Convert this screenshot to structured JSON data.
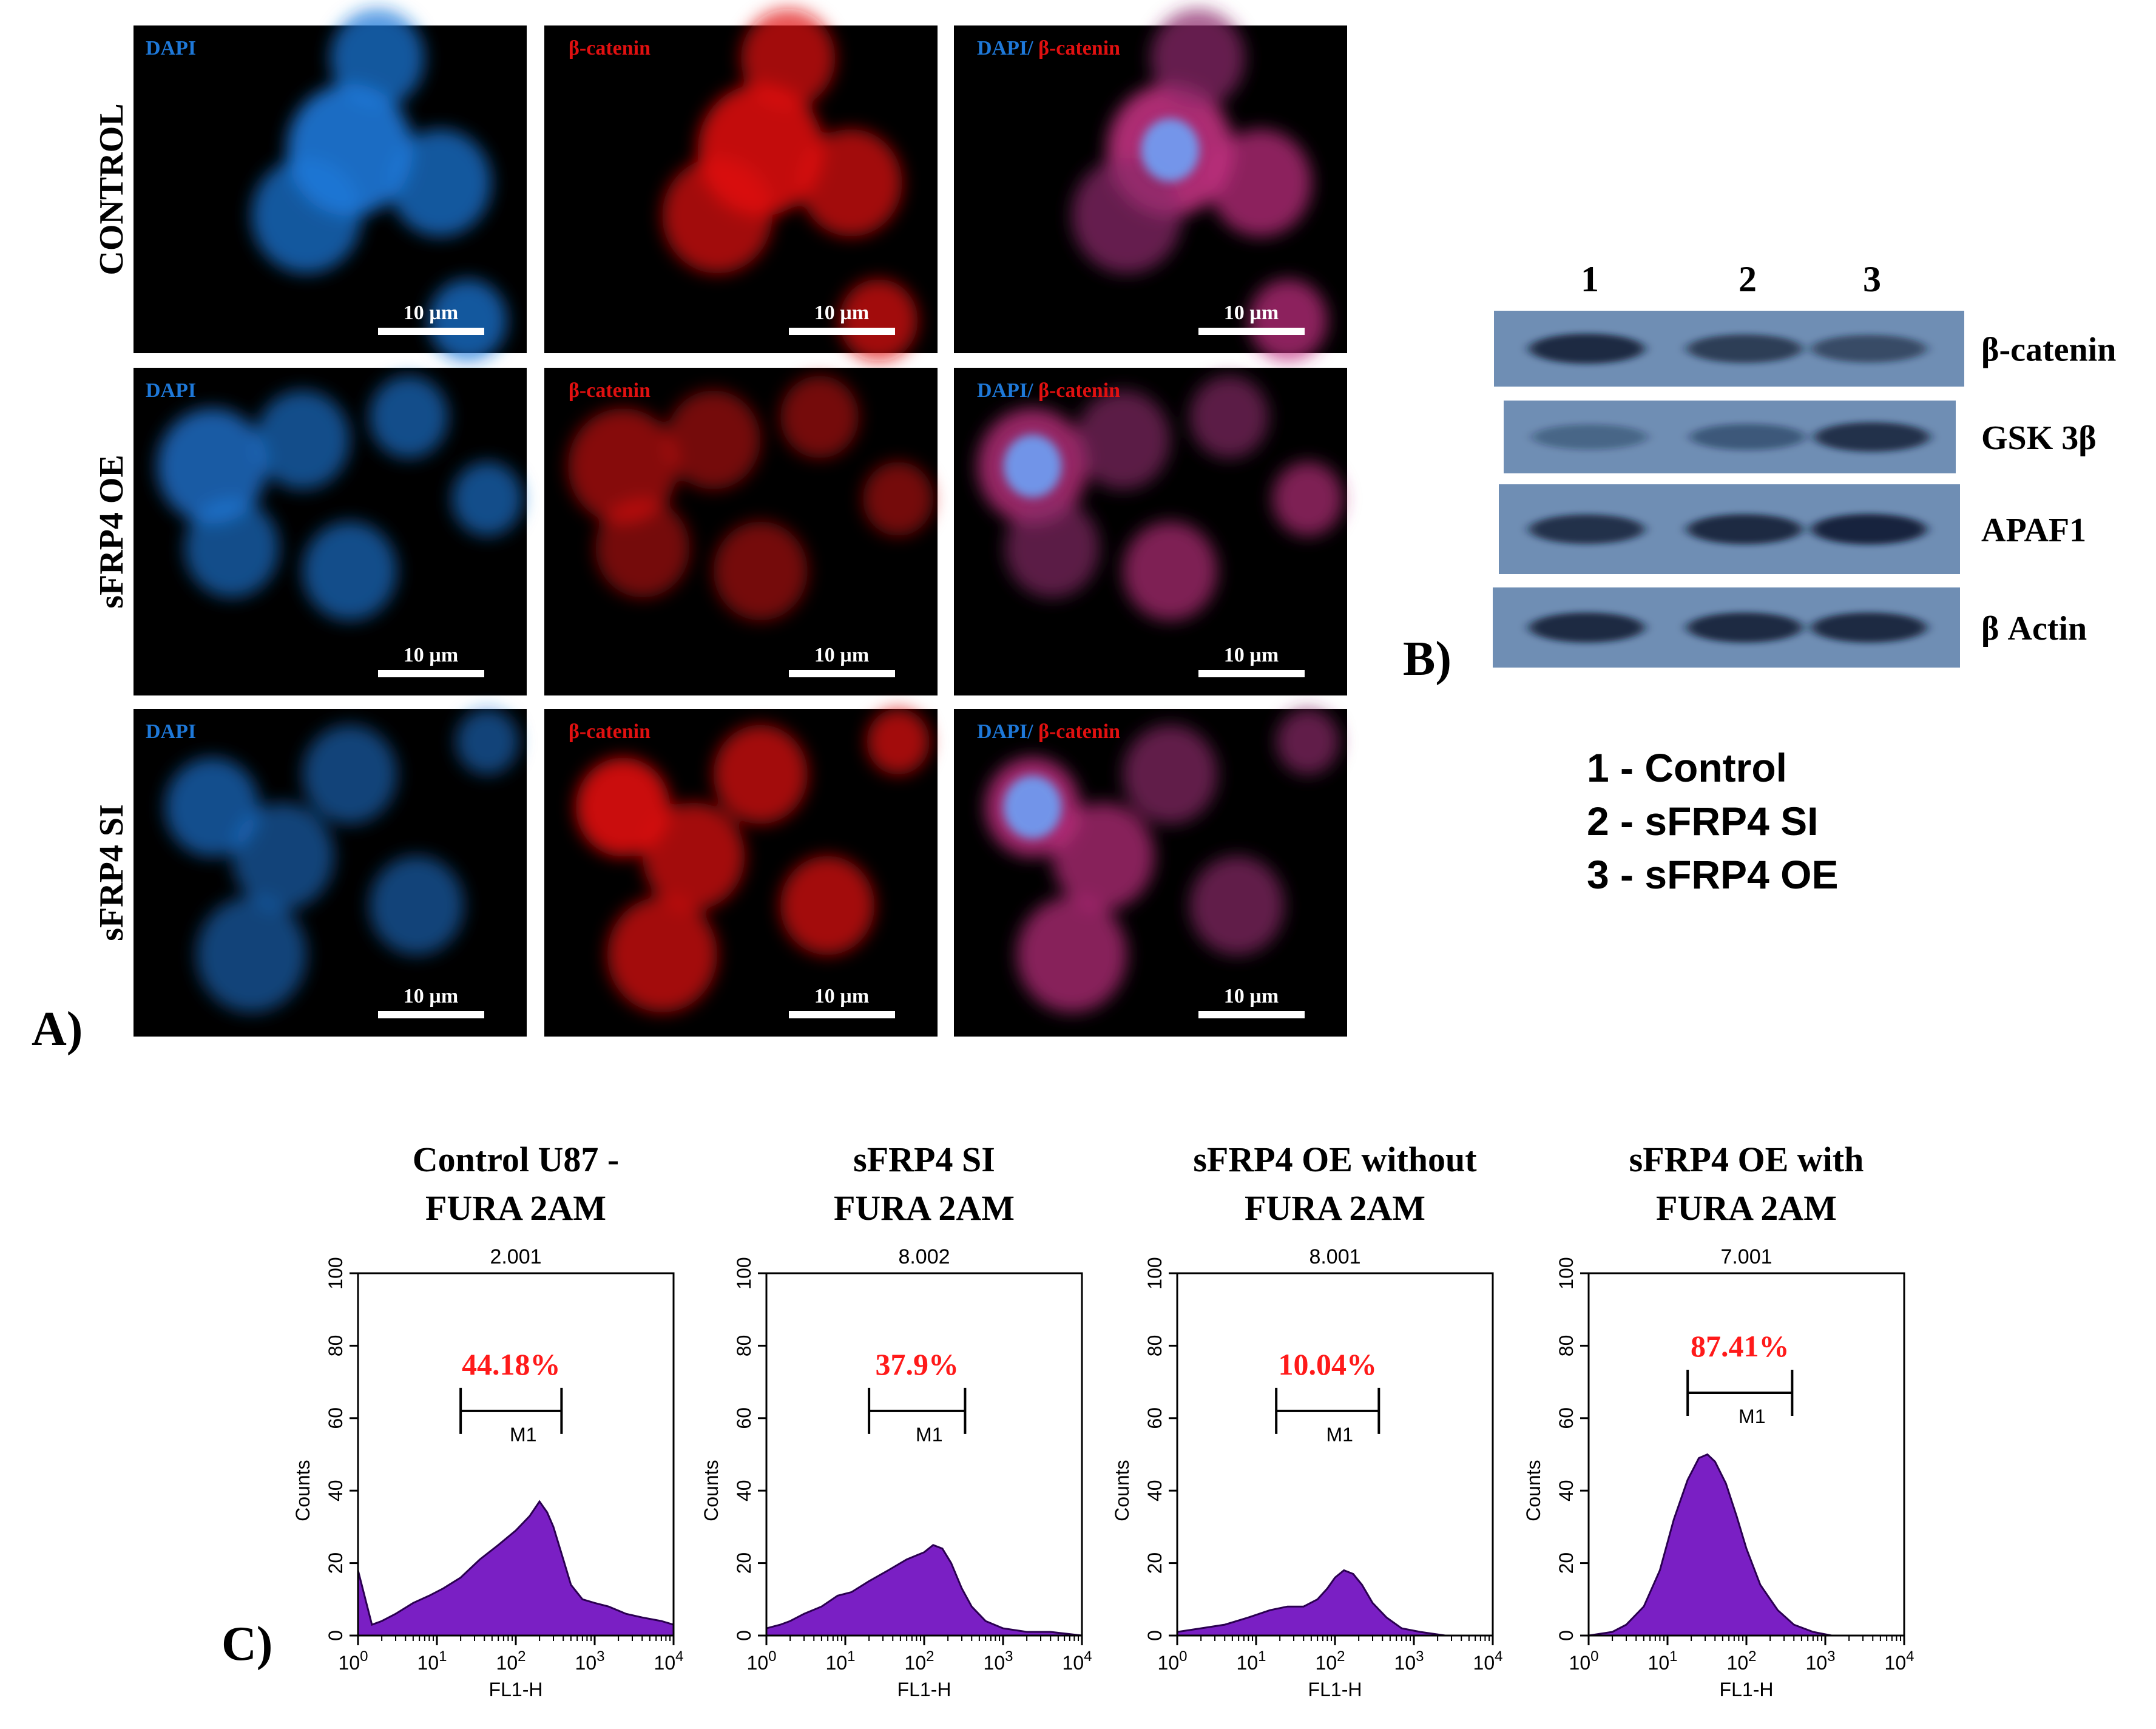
{
  "panel_a": {
    "label": "A)",
    "row_labels": [
      "CONTROL",
      "sFRP4 OE",
      "sFRP4 SI"
    ],
    "channel_labels": {
      "dapi": "DAPI",
      "beta_catenin": "β-catenin",
      "merge_prefix": "DAPI/",
      "merge_suffix": "β-catenin"
    },
    "scale_bar": "10 µm",
    "colors": {
      "dapi": "#1e78d8",
      "beta_catenin": "#e01010",
      "background": "#000000"
    }
  },
  "panel_b": {
    "label": "B)",
    "lane_numbers": [
      "1",
      "2",
      "3"
    ],
    "proteins": [
      "β-catenin",
      "GSK 3β",
      "APAF1",
      "β Actin"
    ],
    "legend": [
      "1 - Control",
      "2 - sFRP4 SI",
      "3 - sFRP4 OE"
    ],
    "colors": {
      "blot": "#6f8eb4"
    }
  },
  "panel_c": {
    "label": "C)",
    "colors": {
      "fill": "#7a1fc4",
      "percent": "#ff1a1a"
    }
  },
  "chart_data": [
    {
      "type": "area",
      "title": "Control U87 -\nFURA 2AM",
      "subtitle": "2.001",
      "xlabel": "FL1-H",
      "ylabel": "Counts",
      "xscale": "log",
      "xlim": [
        1,
        10000
      ],
      "ylim": [
        0,
        100
      ],
      "x_ticks": [
        "10^0",
        "10^1",
        "10^2",
        "10^3",
        "10^4"
      ],
      "y_ticks": [
        "0",
        "20",
        "40",
        "60",
        "80",
        "100"
      ],
      "marker": {
        "label": "M1",
        "range": [
          20,
          380
        ]
      },
      "percent": "44.18%",
      "x": [
        1,
        1.5,
        2,
        3,
        5,
        8,
        12,
        20,
        35,
        60,
        100,
        150,
        200,
        250,
        300,
        400,
        500,
        700,
        1000,
        1500,
        2500,
        4000,
        7000,
        10000
      ],
      "y": [
        18,
        3,
        4,
        6,
        9,
        11,
        13,
        16,
        21,
        25,
        29,
        33,
        37,
        34,
        30,
        21,
        14,
        10,
        9,
        8,
        6,
        5,
        4,
        3
      ]
    },
    {
      "type": "area",
      "title": "sFRP4 SI\nFURA 2AM",
      "subtitle": "8.002",
      "xlabel": "FL1-H",
      "ylabel": "Counts",
      "xscale": "log",
      "xlim": [
        1,
        10000
      ],
      "ylim": [
        0,
        100
      ],
      "x_ticks": [
        "10^0",
        "10^1",
        "10^2",
        "10^3",
        "10^4"
      ],
      "y_ticks": [
        "0",
        "20",
        "40",
        "60",
        "80",
        "100"
      ],
      "marker": {
        "label": "M1",
        "range": [
          20,
          330
        ]
      },
      "percent": "37.9%",
      "x": [
        1,
        1.5,
        2,
        3,
        5,
        8,
        12,
        20,
        35,
        60,
        100,
        130,
        170,
        220,
        300,
        400,
        600,
        1000,
        2000,
        4000,
        10000
      ],
      "y": [
        2,
        3,
        4,
        6,
        8,
        11,
        12,
        15,
        18,
        21,
        23,
        25,
        24,
        20,
        13,
        8,
        4,
        2,
        1,
        1,
        0
      ]
    },
    {
      "type": "area",
      "title": "sFRP4 OE without\nFURA 2AM",
      "subtitle": "8.001",
      "xlabel": "FL1-H",
      "ylabel": "Counts",
      "xscale": "log",
      "xlim": [
        1,
        10000
      ],
      "ylim": [
        0,
        100
      ],
      "x_ticks": [
        "10^0",
        "10^1",
        "10^2",
        "10^3",
        "10^4"
      ],
      "y_ticks": [
        "0",
        "20",
        "40",
        "60",
        "80",
        "100"
      ],
      "marker": {
        "label": "M1",
        "range": [
          18,
          360
        ]
      },
      "percent": "10.04%",
      "x": [
        1,
        2,
        4,
        8,
        15,
        25,
        40,
        60,
        80,
        100,
        130,
        170,
        220,
        300,
        450,
        700,
        1200,
        2500,
        5000,
        10000
      ],
      "y": [
        1,
        2,
        3,
        5,
        7,
        8,
        8,
        10,
        13,
        16,
        18,
        17,
        14,
        9,
        5,
        2,
        1,
        0,
        0,
        0
      ]
    },
    {
      "type": "area",
      "title": "sFRP4 OE with\nFURA 2AM",
      "subtitle": "7.001",
      "xlabel": "FL1-H",
      "ylabel": "Counts",
      "xscale": "log",
      "xlim": [
        1,
        10000
      ],
      "ylim": [
        0,
        100
      ],
      "x_ticks": [
        "10^0",
        "10^1",
        "10^2",
        "10^3",
        "10^4"
      ],
      "y_ticks": [
        "0",
        "20",
        "40",
        "60",
        "80",
        "100"
      ],
      "marker": {
        "label": "M1",
        "range": [
          18,
          380
        ]
      },
      "percent": "87.41%",
      "x": [
        1,
        2,
        3,
        5,
        8,
        12,
        18,
        25,
        32,
        40,
        55,
        75,
        100,
        150,
        250,
        400,
        700,
        1200,
        2500,
        5000,
        10000
      ],
      "y": [
        0,
        1,
        3,
        8,
        18,
        32,
        43,
        49,
        50,
        48,
        42,
        33,
        24,
        14,
        7,
        3,
        1,
        0,
        0,
        0,
        0
      ]
    }
  ]
}
